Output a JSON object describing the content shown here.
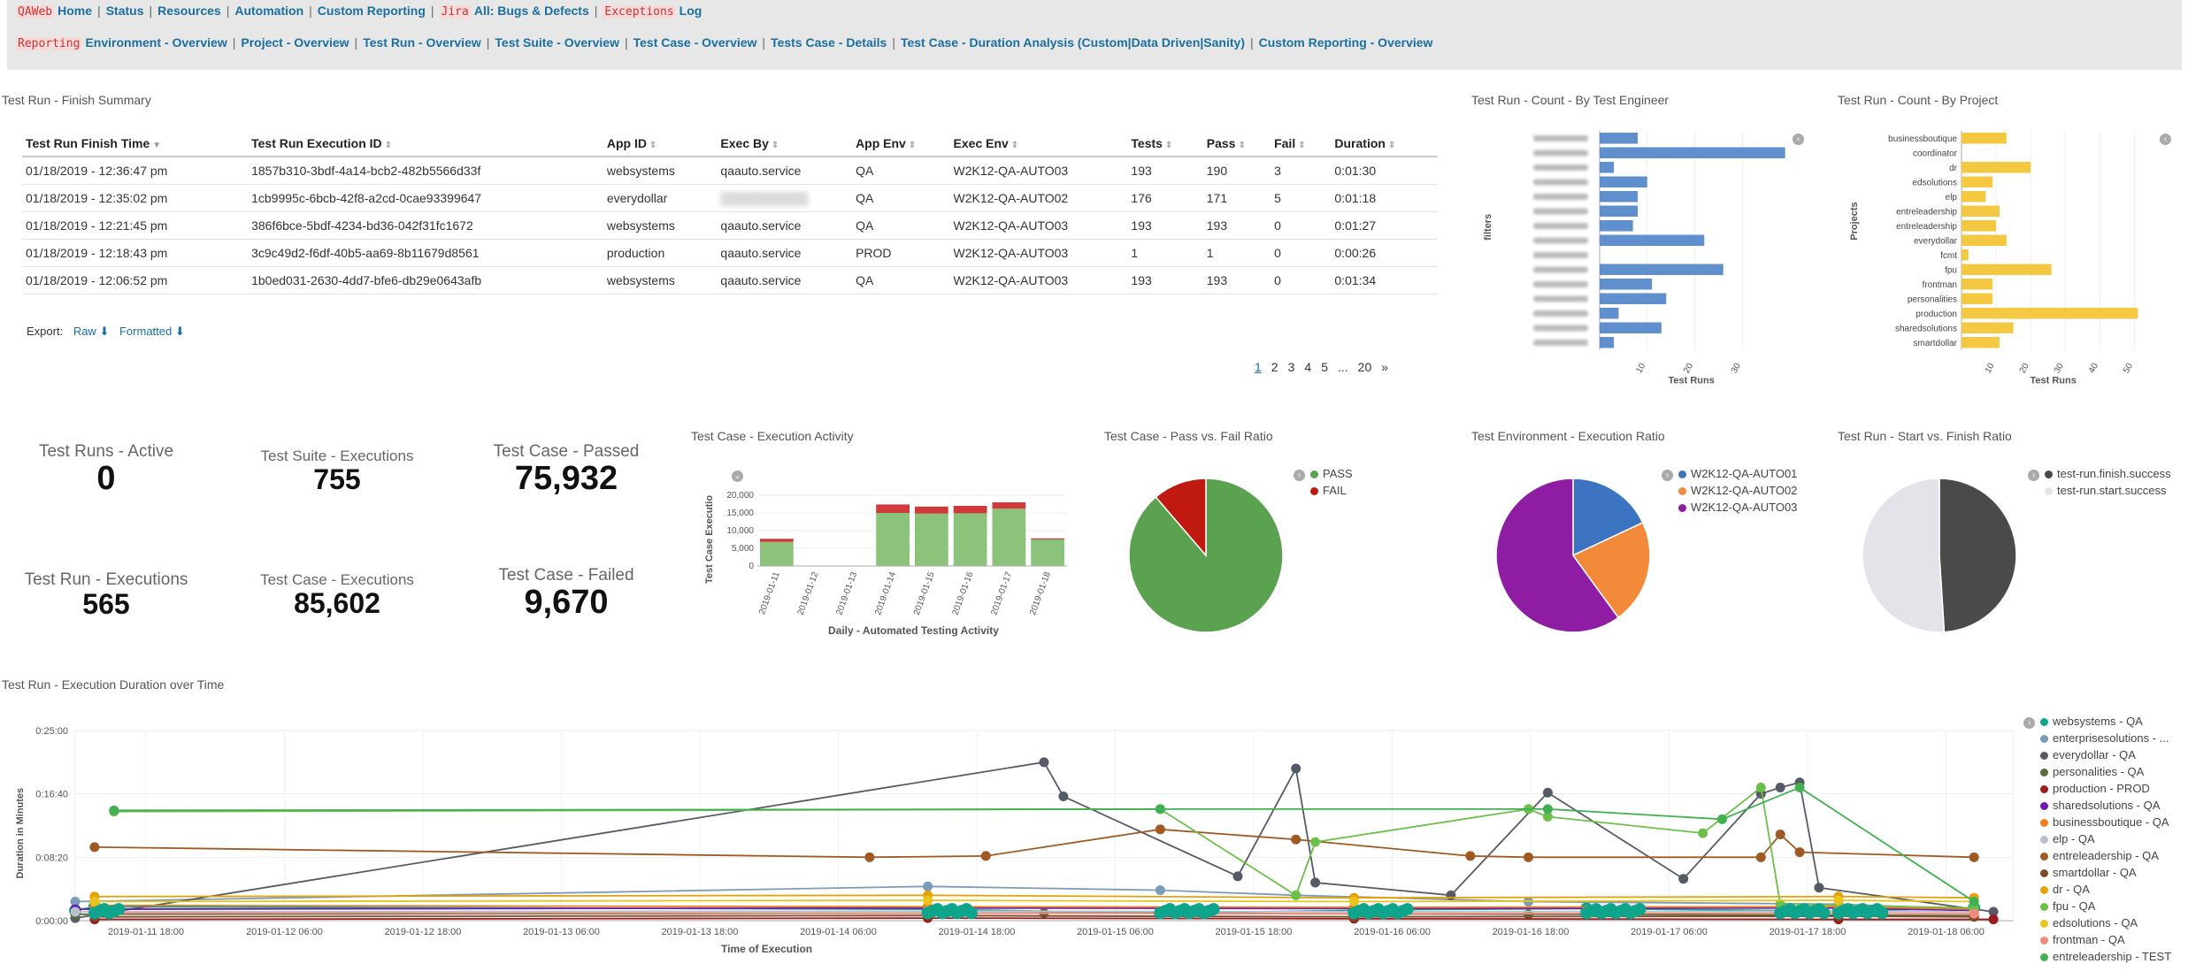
{
  "nav": {
    "row1": [
      {
        "tag": "QAWeb",
        "label": "Home"
      },
      {
        "label": "Status"
      },
      {
        "label": "Resources"
      },
      {
        "label": "Automation"
      },
      {
        "label": "Custom Reporting"
      },
      {
        "tag": "Jira",
        "label": "All: Bugs & Defects"
      },
      {
        "tag": "Exceptions",
        "label": "Log"
      }
    ],
    "row2": [
      {
        "tag": "Reporting",
        "label": "Environment - Overview"
      },
      {
        "label": "Project - Overview"
      },
      {
        "label": "Test Run - Overview"
      },
      {
        "label": "Test Suite - Overview"
      },
      {
        "label": "Test Case - Overview"
      },
      {
        "label": "Tests Case - Details"
      },
      {
        "label": "Test Case - Duration Analysis (Custom|Data Driven|Sanity)"
      },
      {
        "label": "Custom Reporting - Overview"
      }
    ]
  },
  "finish_summary": {
    "title": "Test Run - Finish Summary",
    "columns": [
      "Test Run Finish Time",
      "Test Run Execution ID",
      "App ID",
      "Exec By",
      "App Env",
      "Exec Env",
      "Tests",
      "Pass",
      "Fail",
      "Duration"
    ],
    "rows": [
      [
        "01/18/2019 - 12:36:47 pm",
        "1857b310-3bdf-4a14-bcb2-482b5566d33f",
        "websystems",
        "qaauto.service",
        "QA",
        "W2K12-QA-AUTO03",
        "193",
        "190",
        "3",
        "0:01:30"
      ],
      [
        "01/18/2019 - 12:35:02 pm",
        "1cb9995c-6bcb-42f8-a2cd-0cae93399647",
        "everydollar",
        "",
        "QA",
        "W2K12-QA-AUTO02",
        "176",
        "171",
        "5",
        "0:01:18"
      ],
      [
        "01/18/2019 - 12:21:45 pm",
        "386f6bce-5bdf-4234-bd36-042f31fc1672",
        "websystems",
        "qaauto.service",
        "QA",
        "W2K12-QA-AUTO03",
        "193",
        "193",
        "0",
        "0:01:27"
      ],
      [
        "01/18/2019 - 12:18:43 pm",
        "3c9c49d2-f6df-40b5-aa69-8b11679d8561",
        "production",
        "qaauto.service",
        "PROD",
        "W2K12-QA-AUTO03",
        "1",
        "1",
        "0",
        "0:00:26"
      ],
      [
        "01/18/2019 - 12:06:52 pm",
        "1b0ed031-2630-4dd7-bfe6-db29e0643afb",
        "websystems",
        "qaauto.service",
        "QA",
        "W2K12-QA-AUTO03",
        "193",
        "193",
        "0",
        "0:01:34"
      ]
    ],
    "export_label": "Export:",
    "raw_label": "Raw",
    "formatted_label": "Formatted",
    "pages": [
      "1",
      "2",
      "3",
      "4",
      "5",
      "...",
      "20",
      "»"
    ]
  },
  "by_engineer": {
    "title": "Test Run - Count - By Test Engineer",
    "ylabel": "filters",
    "xlabel": "Test Runs",
    "ticks": [
      "10",
      "20",
      "30"
    ]
  },
  "by_project": {
    "title": "Test Run - Count - By Project",
    "ylabel": "Projects",
    "xlabel": "Test Runs",
    "ticks": [
      "10",
      "20",
      "30",
      "40",
      "50"
    ]
  },
  "metrics": [
    {
      "label": "Test Runs - Active",
      "value": "0"
    },
    {
      "label": "Test Suite - Executions",
      "value": "755"
    },
    {
      "label": "Test Case - Passed",
      "value": "75,932"
    },
    {
      "label": "Test Run - Executions",
      "value": "565"
    },
    {
      "label": "Test Case - Executions",
      "value": "85,602"
    },
    {
      "label": "Test Case - Failed",
      "value": "9,670"
    }
  ],
  "activity": {
    "title": "Test Case - Execution Activity",
    "ylabel": "Test Case Executio",
    "xlabel": "Daily - Automated Testing Activity",
    "yticks": [
      "0",
      "5,000",
      "10,000",
      "15,000",
      "20,000"
    ]
  },
  "passfail": {
    "title": "Test Case - Pass vs. Fail Ratio",
    "legend": [
      "PASS",
      "FAIL"
    ]
  },
  "env_ratio": {
    "title": "Test Environment - Execution Ratio",
    "legend": [
      "W2K12-QA-AUTO01",
      "W2K12-QA-AUTO02",
      "W2K12-QA-AUTO03"
    ]
  },
  "start_finish": {
    "title": "Test Run - Start vs. Finish Ratio",
    "legend": [
      "test-run.finish.success",
      "test-run.start.success"
    ]
  },
  "duration": {
    "title": "Test Run - Execution Duration over Time",
    "ylabel": "Duration in Minutes",
    "xlabel": "Time of Execution",
    "yticks": [
      "0:00:00",
      "0:08:20",
      "0:16:40",
      "0:25:00"
    ],
    "xticks": [
      "2019-01-11 18:00",
      "2019-01-12 06:00",
      "2019-01-12 18:00",
      "2019-01-13 06:00",
      "2019-01-13 18:00",
      "2019-01-14 06:00",
      "2019-01-14 18:00",
      "2019-01-15 06:00",
      "2019-01-15 18:00",
      "2019-01-16 06:00",
      "2019-01-16 18:00",
      "2019-01-17 06:00",
      "2019-01-17 18:00",
      "2019-01-18 06:00"
    ],
    "legend": [
      "websystems - QA",
      "enterprisesolutions - ...",
      "everydollar - QA",
      "personalities - QA",
      "production - PROD",
      "sharedsolutions - QA",
      "businessboutique - QA",
      "elp - QA",
      "entreleadership - QA",
      "smartdollar - QA",
      "dr - QA",
      "fpu - QA",
      "edsolutions - QA",
      "frontman - QA",
      "entreleadership - TEST"
    ]
  },
  "chart_data": [
    {
      "type": "bar",
      "title": "Test Run - Count - By Test Engineer",
      "xlabel": "Test Runs",
      "ylabel": "filters",
      "orientation": "horizontal",
      "xlim": [
        0,
        40
      ],
      "categories": [
        "",
        "",
        "",
        "",
        "",
        "",
        "",
        "",
        "",
        "",
        "",
        "",
        "",
        "",
        ""
      ],
      "values": [
        8,
        39,
        3,
        10,
        8,
        8,
        7,
        22,
        0,
        26,
        11,
        14,
        4,
        13,
        3
      ]
    },
    {
      "type": "bar",
      "title": "Test Run - Count - By Project",
      "xlabel": "Test Runs",
      "ylabel": "Projects",
      "orientation": "horizontal",
      "xlim": [
        0,
        55
      ],
      "categories": [
        "businessboutique",
        "coordinator",
        "dr",
        "edsolutions",
        "elp",
        "entreleadership",
        "entreleadership",
        "everydollar",
        "fcmt",
        "fpu",
        "frontman",
        "personalities",
        "production",
        "sharedsolutions",
        "smartdollar"
      ],
      "values": [
        13,
        0,
        20,
        9,
        7,
        11,
        10,
        13,
        2,
        26,
        9,
        9,
        51,
        15,
        11
      ]
    },
    {
      "type": "bar",
      "title": "Test Case - Execution Activity",
      "xlabel": "Daily - Automated Testing Activity",
      "ylabel": "Test Case Executio",
      "stacked": true,
      "ylim": [
        0,
        20000
      ],
      "categories": [
        "2019-01-11",
        "2019-01-12",
        "2019-01-13",
        "2019-01-14",
        "2019-01-15",
        "2019-01-16",
        "2019-01-17",
        "2019-01-18"
      ],
      "series": [
        {
          "name": "PASS",
          "values": [
            6800,
            0,
            0,
            15000,
            14800,
            14900,
            16200,
            7500
          ]
        },
        {
          "name": "FAIL",
          "values": [
            900,
            0,
            0,
            2400,
            2000,
            2100,
            1800,
            300
          ]
        }
      ]
    },
    {
      "type": "pie",
      "title": "Test Case - Pass vs. Fail Ratio",
      "categories": [
        "PASS",
        "FAIL"
      ],
      "values": [
        75932,
        9670
      ]
    },
    {
      "type": "pie",
      "title": "Test Environment - Execution Ratio",
      "categories": [
        "W2K12-QA-AUTO01",
        "W2K12-QA-AUTO02",
        "W2K12-QA-AUTO03"
      ],
      "values": [
        18,
        22,
        60
      ]
    },
    {
      "type": "pie",
      "title": "Test Run - Start vs. Finish Ratio",
      "categories": [
        "test-run.finish.success",
        "test-run.start.success"
      ],
      "values": [
        49,
        51
      ]
    },
    {
      "type": "line",
      "title": "Test Run - Execution Duration over Time",
      "xlabel": "Time of Execution",
      "ylabel": "Duration in Minutes",
      "ylim": [
        0,
        1500
      ],
      "series": [
        {
          "name": "websystems - QA",
          "points": [
            [
              0,
              80
            ],
            [
              1,
              110
            ],
            [
              44,
              90
            ],
            [
              56,
              60
            ],
            [
              66,
              80
            ],
            [
              66,
              85
            ],
            [
              78,
              95
            ],
            [
              91,
              75
            ],
            [
              98,
              100
            ]
          ]
        },
        {
          "name": "enterprisesolutions - ...",
          "points": [
            [
              0,
              150
            ],
            [
              44,
              270
            ],
            [
              56,
              240
            ],
            [
              63,
              200
            ],
            [
              75,
              150
            ],
            [
              91,
              130
            ],
            [
              98,
              90
            ]
          ]
        },
        {
          "name": "everydollar - QA",
          "points": [
            [
              0,
              20
            ],
            [
              50,
              1250
            ],
            [
              51,
              980
            ],
            [
              60,
              350
            ],
            [
              63,
              1200
            ],
            [
              64,
              300
            ],
            [
              71,
              200
            ],
            [
              76,
              1010
            ],
            [
              83,
              330
            ],
            [
              87,
              1000
            ],
            [
              88,
              1050
            ],
            [
              89,
              1090
            ],
            [
              90,
              260
            ],
            [
              99,
              70
            ]
          ]
        },
        {
          "name": "personalities - QA",
          "points": [
            [
              0,
              50
            ],
            [
              50,
              60
            ],
            [
              75,
              50
            ],
            [
              98,
              40
            ]
          ]
        },
        {
          "name": "production - PROD",
          "points": [
            [
              1,
              10
            ],
            [
              44,
              20
            ],
            [
              66,
              15
            ],
            [
              91,
              10
            ],
            [
              99,
              10
            ]
          ]
        },
        {
          "name": "sharedsolutions - QA",
          "points": [
            [
              0,
              90
            ],
            [
              44,
              100
            ],
            [
              66,
              95
            ],
            [
              91,
              100
            ],
            [
              98,
              80
            ]
          ]
        },
        {
          "name": "businessboutique - QA",
          "points": [
            [
              1,
              120
            ],
            [
              44,
              110
            ],
            [
              66,
              105
            ],
            [
              91,
              110
            ],
            [
              98,
              90
            ]
          ]
        },
        {
          "name": "elp - QA",
          "points": [
            [
              0,
              70
            ],
            [
              44,
              75
            ],
            [
              66,
              70
            ],
            [
              91,
              75
            ],
            [
              98,
              70
            ]
          ]
        },
        {
          "name": "entreleadership - QA",
          "points": [
            [
              1,
              580
            ],
            [
              41,
              500
            ],
            [
              47,
              510
            ],
            [
              56,
              720
            ],
            [
              63,
              640
            ],
            [
              72,
              510
            ],
            [
              75,
              500
            ],
            [
              87,
              500
            ],
            [
              88,
              680
            ],
            [
              89,
              540
            ],
            [
              98,
              500
            ]
          ]
        },
        {
          "name": "smartdollar - QA",
          "points": [
            [
              1,
              30
            ],
            [
              44,
              40
            ],
            [
              66,
              30
            ],
            [
              91,
              35
            ],
            [
              98,
              30
            ]
          ]
        },
        {
          "name": "dr - QA",
          "points": [
            [
              1,
              190
            ],
            [
              44,
              200
            ],
            [
              66,
              180
            ],
            [
              91,
              190
            ],
            [
              98,
              180
            ]
          ]
        },
        {
          "name": "fpu - QA",
          "points": [
            [
              2,
              860
            ],
            [
              56,
              880
            ],
            [
              63,
              200
            ],
            [
              64,
              620
            ],
            [
              75,
              880
            ],
            [
              76,
              820
            ],
            [
              84,
              690
            ],
            [
              87,
              1050
            ],
            [
              88,
              130
            ],
            [
              98,
              100
            ]
          ]
        },
        {
          "name": "edsolutions - QA",
          "points": [
            [
              1,
              150
            ],
            [
              44,
              160
            ],
            [
              66,
              150
            ],
            [
              91,
              160
            ],
            [
              98,
              150
            ]
          ]
        },
        {
          "name": "frontman - QA",
          "points": [
            [
              1,
              60
            ],
            [
              44,
              60
            ],
            [
              66,
              55
            ],
            [
              91,
              60
            ],
            [
              98,
              55
            ]
          ]
        },
        {
          "name": "entreleadership - TEST",
          "points": [
            [
              2,
              870
            ],
            [
              56,
              880
            ],
            [
              76,
              880
            ],
            [
              85,
              800
            ],
            [
              89,
              1050
            ],
            [
              98,
              150
            ]
          ]
        }
      ]
    }
  ]
}
